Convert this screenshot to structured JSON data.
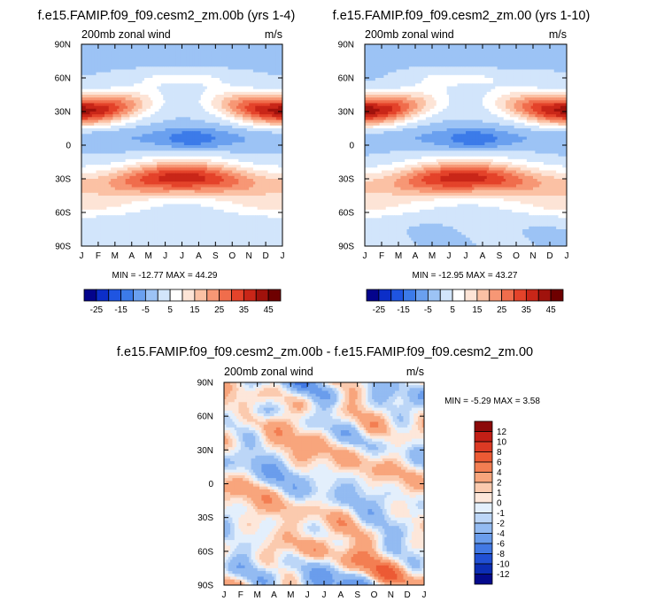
{
  "chart_data": [
    {
      "type": "heatmap",
      "title": "f.e15.FAMIP.f09_f09.cesm2_zm.00b (yrs 1-4)",
      "subtitle_left": "200mb zonal wind",
      "subtitle_right": "m/s",
      "months": [
        "J",
        "F",
        "M",
        "A",
        "M",
        "J",
        "J",
        "A",
        "S",
        "O",
        "N",
        "D",
        "J"
      ],
      "latitudes": [
        "90N",
        "60N",
        "30N",
        "0",
        "30S",
        "60S",
        "90S"
      ],
      "min_max_text": "MIN = -12.77 MAX =  44.29",
      "colorbar": {
        "levels": [
          -30,
          -25,
          -20,
          -15,
          -10,
          -5,
          0,
          5,
          10,
          15,
          20,
          25,
          30,
          35,
          40,
          45
        ],
        "labels": [
          "-25",
          "-15",
          "-5",
          "5",
          "15",
          "25",
          "35",
          "45"
        ],
        "colors": [
          "#04048c",
          "#0c2ec8",
          "#1f55e1",
          "#3c7be9",
          "#6aa0ef",
          "#9cc3f5",
          "#d2e5fb",
          "#ffffff",
          "#fde4d6",
          "#fbc1a4",
          "#f79775",
          "#f06d4c",
          "#e4432a",
          "#c92618",
          "#a0120c",
          "#6e0000"
        ]
      }
    },
    {
      "type": "heatmap",
      "title": "f.e15.FAMIP.f09_f09.cesm2_zm.00 (yrs 1-10)",
      "subtitle_left": "200mb zonal wind",
      "subtitle_right": "m/s",
      "months": [
        "J",
        "F",
        "M",
        "A",
        "M",
        "J",
        "J",
        "A",
        "S",
        "O",
        "N",
        "D",
        "J"
      ],
      "latitudes": [
        "90N",
        "60N",
        "30N",
        "0",
        "30S",
        "60S",
        "90S"
      ],
      "min_max_text": "MIN = -12.95 MAX =  43.27",
      "colorbar": {
        "levels": [
          -30,
          -25,
          -20,
          -15,
          -10,
          -5,
          0,
          5,
          10,
          15,
          20,
          25,
          30,
          35,
          40,
          45
        ],
        "labels": [
          "-25",
          "-15",
          "-5",
          "5",
          "15",
          "25",
          "35",
          "45"
        ],
        "colors": [
          "#04048c",
          "#0c2ec8",
          "#1f55e1",
          "#3c7be9",
          "#6aa0ef",
          "#9cc3f5",
          "#d2e5fb",
          "#ffffff",
          "#fde4d6",
          "#fbc1a4",
          "#f79775",
          "#f06d4c",
          "#e4432a",
          "#c92618",
          "#a0120c",
          "#6e0000"
        ]
      }
    },
    {
      "type": "heatmap",
      "title": "f.e15.FAMIP.f09_f09.cesm2_zm.00b - f.e15.FAMIP.f09_f09.cesm2_zm.00",
      "subtitle_left": "200mb zonal wind",
      "subtitle_right": "m/s",
      "months": [
        "J",
        "F",
        "M",
        "A",
        "M",
        "J",
        "J",
        "A",
        "S",
        "O",
        "N",
        "D",
        "J"
      ],
      "latitudes": [
        "90N",
        "60N",
        "30N",
        "0",
        "30S",
        "60S",
        "90S"
      ],
      "min_max_text": "MIN =  -5.29 MAX =   3.58",
      "colorbar": {
        "labels": [
          "12",
          "10",
          "8",
          "6",
          "4",
          "2",
          "1",
          "0",
          "-1",
          "-2",
          "-4",
          "-6",
          "-8",
          "-10",
          "-12"
        ],
        "colors": [
          "#8c0a0a",
          "#c21f16",
          "#dc3a24",
          "#ec5a34",
          "#f37e52",
          "#f8a57c",
          "#fbcaae",
          "#fde7da",
          "#e3effc",
          "#bcd6f7",
          "#93bbf2",
          "#6a9dec",
          "#4279e4",
          "#2150d4",
          "#0c2db4",
          "#040a8c"
        ]
      },
      "notes": "approximate fields: top panels show jets near 30N in DJF and 30S in JJA with easterlies near the equator in JJA"
    }
  ]
}
